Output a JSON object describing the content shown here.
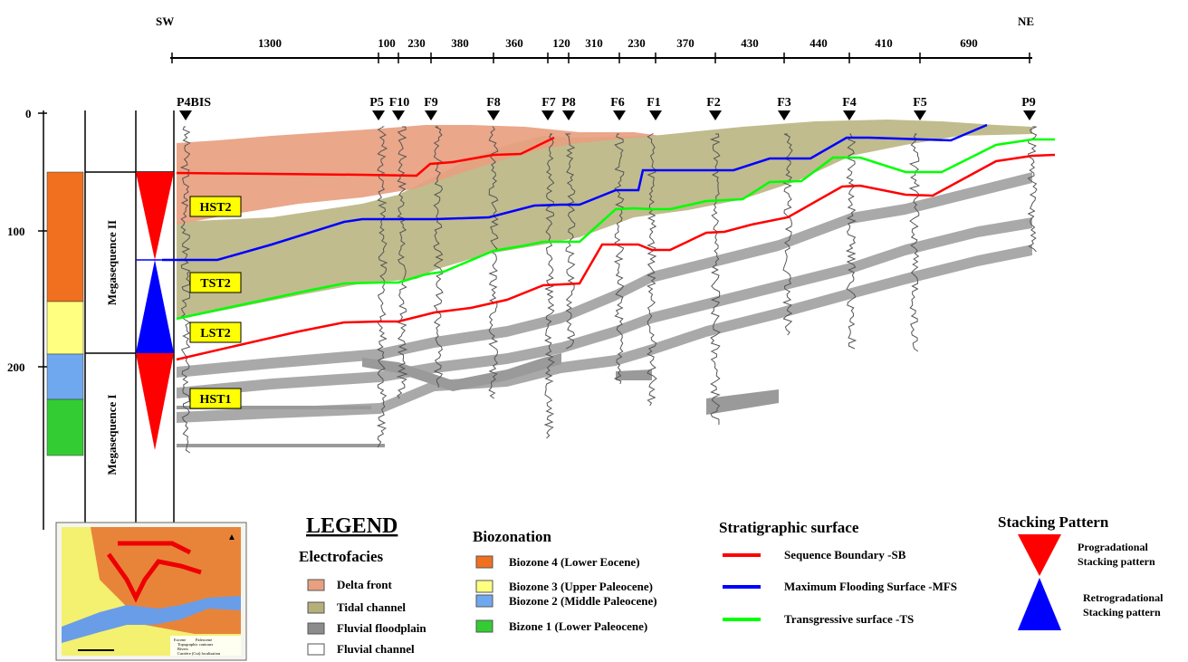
{
  "directions": {
    "left": "SW",
    "right": "NE"
  },
  "distances": [
    "1300",
    "100",
    "230",
    "380",
    "360",
    "120",
    "310",
    "230",
    "370",
    "430",
    "440",
    "410",
    "690"
  ],
  "wells": [
    "P4BIS",
    "P5",
    "F10",
    "F9",
    "F8",
    "F7",
    "P8",
    "F6",
    "F1",
    "F2",
    "F3",
    "F4",
    "F5",
    "P9"
  ],
  "depth_axis": {
    "ticks": [
      "0",
      "100",
      "200"
    ]
  },
  "megasequences": {
    "upper": "Megasequence  II",
    "lower": "Megasequence I"
  },
  "systems_tracts": [
    "HST2",
    "TST2",
    "LST2",
    "HST1"
  ],
  "legend": {
    "title": "LEGEND",
    "electrofacies": {
      "title": "Electrofacies",
      "items": [
        {
          "label": "Delta front",
          "color": "#e8a080"
        },
        {
          "label": "Tidal channel",
          "color": "#b5b07a"
        },
        {
          "label": "Fluvial floodplain",
          "color": "#8c8c8c"
        },
        {
          "label": "Fluvial channel",
          "color": "#ffffff"
        }
      ]
    },
    "biozonation": {
      "title": "Biozonation",
      "items": [
        {
          "label": "Biozone 4 (Lower Eocene)",
          "color": "#f07020"
        },
        {
          "label": "Biozone 3 (Upper Paleocene)",
          "color": "#ffff80"
        },
        {
          "label": "Biozone 2 (Middle Paleocene)",
          "color": "#70a8f0"
        },
        {
          "label": "Bizone 1 (Lower Paleocene)",
          "color": "#33cc33"
        }
      ]
    },
    "stratigraphic_surface": {
      "title": "Stratigraphic surface",
      "items": [
        {
          "label": "Sequence Boundary -SB",
          "color": "#ff0000"
        },
        {
          "label": "Maximum Flooding Surface -MFS",
          "color": "#0000ff"
        },
        {
          "label": "Transgressive surface -TS",
          "color": "#00ff00"
        }
      ]
    },
    "stacking": {
      "title": "Stacking Pattern",
      "items": [
        {
          "label_line1": "Progradational",
          "label_line2": "Stacking pattern",
          "color": "#ff0000"
        },
        {
          "label_line1": "Retrogradational",
          "label_line2": "Stacking pattern",
          "color": "#0000ff"
        }
      ]
    }
  },
  "inset_map": {
    "labels": [
      "Eocene",
      "Paleocene",
      "Topographic contours",
      "Rivers",
      "Carrière (Cut) localisation"
    ]
  }
}
